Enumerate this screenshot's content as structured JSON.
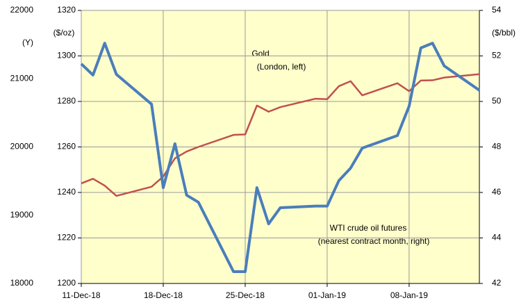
{
  "chart_data": {
    "type": "line",
    "x": [
      "2018-12-11",
      "2018-12-12",
      "2018-12-13",
      "2018-12-14",
      "2018-12-17",
      "2018-12-18",
      "2018-12-19",
      "2018-12-20",
      "2018-12-21",
      "2018-12-24",
      "2018-12-25",
      "2018-12-26",
      "2018-12-27",
      "2018-12-28",
      "2018-12-31",
      "2019-01-01",
      "2019-01-02",
      "2019-01-03",
      "2019-01-04",
      "2019-01-07",
      "2019-01-08",
      "2019-01-09",
      "2019-01-10",
      "2019-01-11",
      "2019-01-14"
    ],
    "xlim": [
      "2018-12-11",
      "2019-01-14"
    ],
    "xticks": [
      {
        "value": "2018-12-11",
        "label": "11-Dec-18"
      },
      {
        "value": "2018-12-18",
        "label": "18-Dec-18"
      },
      {
        "value": "2018-12-25",
        "label": "25-Dec-18"
      },
      {
        "value": "2019-01-01",
        "label": "01-Jan-19"
      },
      {
        "value": "2019-01-08",
        "label": "08-Jan-19"
      }
    ],
    "ylim": [
      1200,
      1320
    ],
    "yticks": [
      1200,
      1220,
      1240,
      1260,
      1280,
      1300,
      1320
    ],
    "ylabel": "($/oz)",
    "y2lim": [
      42,
      54
    ],
    "y2ticks": [
      42,
      44,
      46,
      48,
      50,
      52,
      54
    ],
    "y2label": "($/bbl)",
    "y3lim": [
      18000,
      22000
    ],
    "y3ticks": [
      18000,
      19000,
      20000,
      21000,
      22000
    ],
    "y3label": "(Y)",
    "grid": true,
    "background": "#ffffcc",
    "series": [
      {
        "name": "Gold",
        "color": "#c0504d",
        "values": [
          1244,
          1246,
          1243,
          1238.5,
          1242.5,
          1247,
          1255,
          1258,
          1260,
          1265.3,
          1265.5,
          1278.2,
          1275.5,
          1277.5,
          1281.2,
          1281,
          1286.7,
          1288.9,
          1282.7,
          1288,
          1284.5,
          1289.2,
          1289.3,
          1290.5,
          1292
        ]
      },
      {
        "name": "WTI",
        "color": "#4a7ebb",
        "axis": "y2",
        "values": [
          51.65,
          51.16,
          52.56,
          51.19,
          49.88,
          46.21,
          48.14,
          45.88,
          45.57,
          42.52,
          42.52,
          46.21,
          44.62,
          45.33,
          45.4,
          45.4,
          46.52,
          47.07,
          47.95,
          48.5,
          49.79,
          52.35,
          52.56,
          51.56,
          50.49
        ]
      }
    ],
    "annotations": [
      "Gold",
      "(London, left)",
      "WTI  crude  oil futures",
      "(nearest contract month, right)"
    ]
  }
}
